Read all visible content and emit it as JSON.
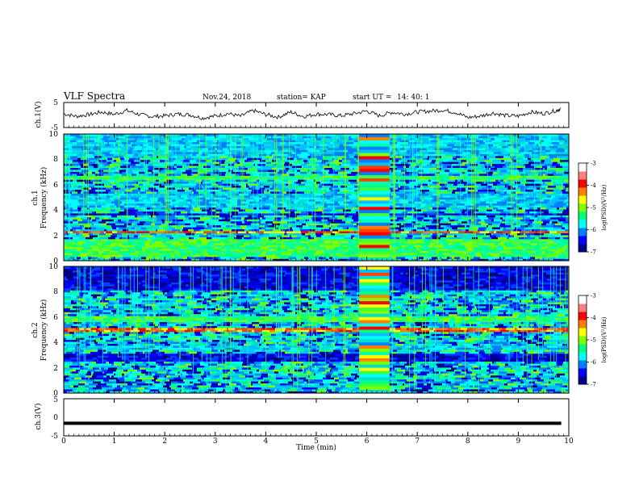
{
  "header": {
    "title": "VLF Spectra",
    "date": "Nov.24, 2018",
    "station": "station= KAP",
    "start_label": "start  UT =",
    "start_time": "14: 40: 1"
  },
  "chart_data": [
    {
      "type": "line",
      "panel": "ch1-waveform",
      "ylabel": "ch.1(V)",
      "ylim": [
        -5,
        5
      ],
      "y_ticks": [
        "5",
        "-5"
      ],
      "xlim": [
        0,
        10
      ],
      "x": [
        0,
        0.25,
        0.5,
        0.75,
        1,
        1.25,
        1.5,
        1.75,
        2,
        2.25,
        2.5,
        2.75,
        3,
        3.25,
        3.5,
        3.75,
        4,
        4.25,
        4.5,
        4.75,
        5,
        5.25,
        5.5,
        5.75,
        6,
        6.25,
        6.5,
        6.75,
        7,
        7.25,
        7.5,
        7.75,
        8,
        8.25,
        8.5,
        8.75,
        9,
        9.25,
        9.5,
        9.75,
        9.85
      ],
      "y": [
        0.5,
        -0.5,
        0.2,
        1.2,
        0.3,
        1.8,
        0.2,
        -0.6,
        -0.3,
        0.4,
        0.1,
        -1.2,
        -0.4,
        0.6,
        -0.5,
        1.8,
        0.2,
        -0.8,
        1.2,
        -0.6,
        0.4,
        0.2,
        -0.3,
        0.6,
        1.6,
        -0.3,
        1.1,
        0.4,
        1.2,
        1.6,
        2.0,
        1.1,
        -1.0,
        -0.4,
        0.8,
        -0.2,
        -0.4,
        1.2,
        0.6,
        1.8,
        2.6
      ],
      "color": "#000000"
    },
    {
      "type": "heatmap",
      "panel": "ch1-spectrogram",
      "ylabel": "ch.1",
      "ylabel_sub": "Frequency (kHz)",
      "xlim": [
        0,
        10
      ],
      "ylim": [
        0,
        10
      ],
      "y_ticks": [
        "0",
        "2",
        "4",
        "6",
        "8",
        "10"
      ],
      "bands_khz": [
        [
          0.3,
          1.8,
          "green"
        ],
        [
          2.1,
          2.4,
          "orange"
        ],
        [
          3.5,
          3.8,
          "blue"
        ],
        [
          4.1,
          5.4,
          "cyan"
        ],
        [
          6.4,
          6.8,
          "green"
        ],
        [
          8.2,
          10,
          "cyan"
        ]
      ],
      "event_window_min": [
        5.85,
        6.45
      ]
    },
    {
      "type": "heatmap",
      "panel": "ch2-spectrogram",
      "ylabel": "ch.2",
      "ylabel_sub": "Frequency (kHz)",
      "xlim": [
        0,
        10
      ],
      "ylim": [
        0,
        10
      ],
      "y_ticks": [
        "0",
        "2",
        "4",
        "6",
        "8",
        "10"
      ],
      "bands_khz": [
        [
          1.8,
          2.0,
          "orange"
        ],
        [
          2.5,
          3.2,
          "blue"
        ],
        [
          3.3,
          3.8,
          "cyan"
        ],
        [
          4.8,
          5.2,
          "orange"
        ],
        [
          5.5,
          6.2,
          "green"
        ],
        [
          8,
          10,
          "blue"
        ]
      ],
      "event_window_min": [
        5.85,
        6.45
      ]
    },
    {
      "type": "line",
      "panel": "ch3-waveform",
      "ylabel": "ch.3(V)",
      "ylim": [
        -5,
        5
      ],
      "y_ticks": [
        "5",
        "0",
        "-5"
      ],
      "xlim": [
        0,
        10
      ],
      "x": [
        0,
        9.85
      ],
      "y": [
        -1.6,
        -1.6
      ],
      "color": "#000000"
    }
  ],
  "x_axis": {
    "label": "Time  (min)",
    "ticks": [
      "0",
      "1",
      "2",
      "3",
      "4",
      "5",
      "6",
      "7",
      "8",
      "9",
      "10"
    ]
  },
  "colorbar": {
    "label": "log(PSD)(V²/Hz)",
    "ticks": [
      "-3",
      "-4",
      "-5",
      "-6",
      "-7"
    ],
    "range": [
      -7,
      -3
    ],
    "colors": [
      "#00008c",
      "#0000ff",
      "#0080ff",
      "#00ffff",
      "#00ff80",
      "#80ff00",
      "#ffff00",
      "#ff8000",
      "#ff0000",
      "#ff8080",
      "#ffffff"
    ]
  }
}
